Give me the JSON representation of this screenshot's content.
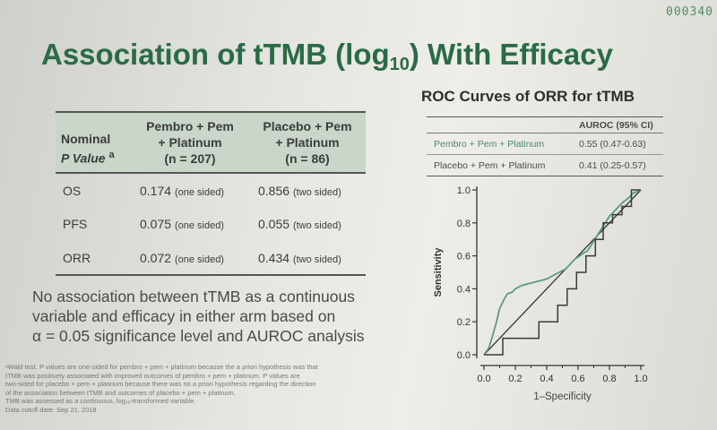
{
  "slide_number": "000340",
  "title": {
    "main": "Association of tTMB (log",
    "subscript": "10",
    "end": ") With Efficacy"
  },
  "table": {
    "header": {
      "col0_line1": "Nominal",
      "col0_line2": "P Value",
      "col0_sup": "a",
      "col1_line1": "Pembro + Pem",
      "col1_line2": "+ Platinum",
      "col1_line3": "(n = 207)",
      "col2_line1": "Placebo + Pem",
      "col2_line2": "+ Platinum",
      "col2_line3": "(n = 86)"
    },
    "rows": [
      {
        "measure": "OS",
        "v1": "0.174",
        "s1": "(one sided)",
        "v2": "0.856",
        "s2": "(two sided)"
      },
      {
        "measure": "PFS",
        "v1": "0.075",
        "s1": "(one sided)",
        "v2": "0.055",
        "s2": "(two sided)"
      },
      {
        "measure": "ORR",
        "v1": "0.072",
        "s1": "(one sided)",
        "v2": "0.434",
        "s2": "(two sided)"
      }
    ]
  },
  "conclusion": {
    "line1": "No association between tTMB as a continuous",
    "line2": "variable and efficacy in either arm based on",
    "line3": "α = 0.05 significance level and AUROC analysis"
  },
  "footnote": {
    "line1": "ᵃWald test. P values are one-sided for pembro + pem + platinum because the a priori hypothesis was that",
    "line2": "tTMB was positively associated with improved outcomes of pembro + pem + platinum. P values are",
    "line3": "two-sided for placebo + pem + platinum because there was no a priori hypothesis regarding the direction",
    "line4": "of the association between tTMB and outcomes of placebo + pem + platinum.",
    "line5": "TMB was assessed as a continuous, log₁₀-transformed variable.",
    "line6": "Data cutoff date: Sep 21, 2018"
  },
  "roc": {
    "title": "ROC Curves of ORR for tTMB",
    "legend_header": "AUROC (95% CI)",
    "legend": [
      {
        "name": "Pembro + Pem + Platinum",
        "value": "0.55 (0.47-0.63)"
      },
      {
        "name": "Placebo + Pem + Platinum",
        "value": "0.41 (0.25-0.57)"
      }
    ]
  },
  "colors": {
    "title_green": "#2a6b47",
    "series_pembro": "#5e9a80",
    "series_placebo": "#3a3a3a",
    "header_fill": "#c9d6c9"
  },
  "chart_data": {
    "type": "line",
    "title": "ROC Curves of ORR for tTMB",
    "xlabel": "1–Specificity",
    "ylabel": "Sensitivity",
    "xlim": [
      0,
      1
    ],
    "ylim": [
      0,
      1
    ],
    "xticks": [
      "0.0",
      "0.2",
      "0.4",
      "0.6",
      "0.8",
      "1.0"
    ],
    "xticks_minor": [
      0.1,
      0.3,
      0.5,
      0.7,
      0.9
    ],
    "yticks": [
      "0.0",
      "0.2",
      "0.4",
      "0.6",
      "0.8",
      "1.0"
    ],
    "grid": false,
    "reference_line": {
      "x": [
        0,
        1
      ],
      "y": [
        0,
        1
      ]
    },
    "series": [
      {
        "name": "Pembro + Pem + Platinum",
        "x": [
          0,
          0.03,
          0.05,
          0.08,
          0.1,
          0.13,
          0.15,
          0.18,
          0.2,
          0.24,
          0.28,
          0.32,
          0.36,
          0.4,
          0.44,
          0.48,
          0.52,
          0.55,
          0.58,
          0.61,
          0.64,
          0.66,
          0.68,
          0.72,
          0.76,
          0.8,
          0.84,
          0.88,
          0.92,
          0.95,
          1.0
        ],
        "y": [
          0,
          0.04,
          0.1,
          0.2,
          0.28,
          0.34,
          0.37,
          0.38,
          0.4,
          0.42,
          0.43,
          0.44,
          0.45,
          0.46,
          0.48,
          0.5,
          0.52,
          0.55,
          0.58,
          0.6,
          0.62,
          0.63,
          0.66,
          0.72,
          0.78,
          0.84,
          0.88,
          0.92,
          0.95,
          0.98,
          1.0
        ]
      },
      {
        "name": "Placebo + Pem + Platinum",
        "x": [
          0,
          0.12,
          0.12,
          0.35,
          0.35,
          0.47,
          0.47,
          0.53,
          0.53,
          0.59,
          0.59,
          0.65,
          0.65,
          0.71,
          0.71,
          0.76,
          0.76,
          0.82,
          0.82,
          0.88,
          0.88,
          0.94,
          0.94,
          1.0
        ],
        "y": [
          0,
          0.0,
          0.1,
          0.1,
          0.2,
          0.2,
          0.3,
          0.3,
          0.4,
          0.4,
          0.5,
          0.5,
          0.6,
          0.6,
          0.7,
          0.7,
          0.8,
          0.8,
          0.85,
          0.85,
          0.9,
          0.9,
          1.0,
          1.0
        ]
      }
    ]
  }
}
